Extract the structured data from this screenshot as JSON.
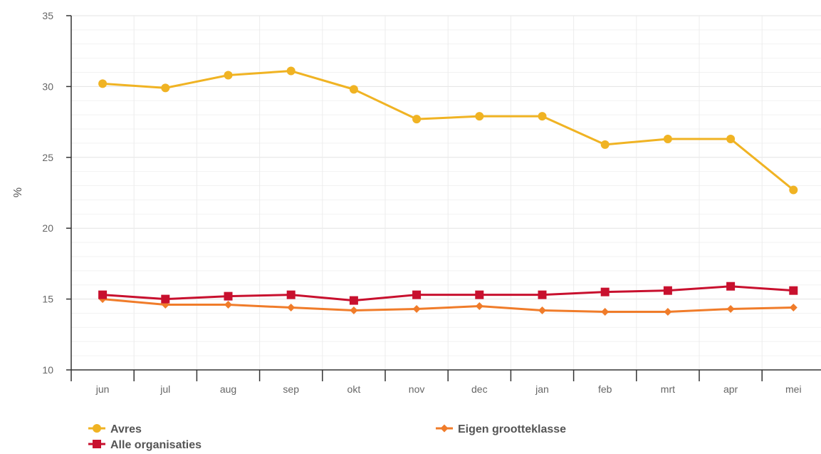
{
  "chart_data": {
    "type": "line",
    "title": "",
    "xlabel": "",
    "ylabel": "%",
    "ylim": [
      10,
      35
    ],
    "y_ticks": [
      10,
      15,
      20,
      25,
      30,
      35
    ],
    "grid": true,
    "legend_position": "bottom",
    "categories": [
      "jun",
      "jul",
      "aug",
      "sep",
      "okt",
      "nov",
      "dec",
      "jan",
      "feb",
      "mrt",
      "apr",
      "mei"
    ],
    "series": [
      {
        "name": "Avres",
        "color": "#f0b323",
        "marker": "circle",
        "values": [
          30.2,
          29.9,
          30.8,
          31.1,
          29.8,
          27.7,
          27.9,
          27.9,
          25.9,
          26.3,
          26.3,
          22.7
        ]
      },
      {
        "name": "Alle organisaties",
        "color": "#c8102e",
        "marker": "square",
        "values": [
          15.3,
          15.0,
          15.2,
          15.3,
          14.9,
          15.3,
          15.3,
          15.3,
          15.5,
          15.6,
          15.9,
          15.6
        ]
      },
      {
        "name": "Eigen grootteklasse",
        "color": "#f07c2a",
        "marker": "diamond",
        "values": [
          15.0,
          14.6,
          14.6,
          14.4,
          14.2,
          14.3,
          14.5,
          14.2,
          14.1,
          14.1,
          14.3,
          14.4
        ]
      }
    ]
  }
}
